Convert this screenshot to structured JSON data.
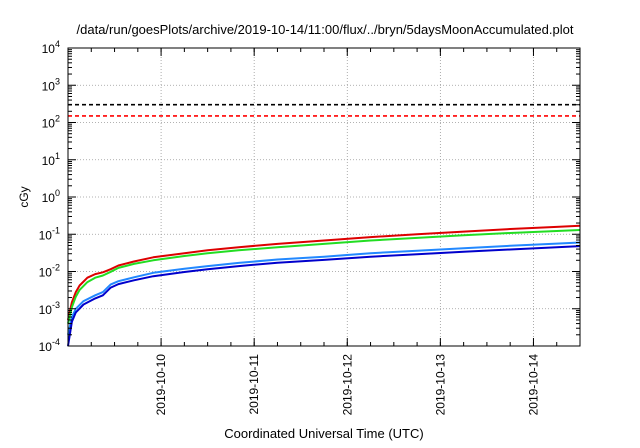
{
  "chart_data": {
    "type": "line",
    "title": "/data/run/goesPlots/archive/2019-10-14/11:00/flux/../bryn/5daysMoonAccumulated.plot",
    "xlabel": "Coordinated Universal Time (UTC)",
    "ylabel": "cGy",
    "x_is_date": true,
    "xlim": [
      "2019-10-09T00:00",
      "2019-10-14T12:00"
    ],
    "x_ticks": [
      "2019-10-10",
      "2019-10-11",
      "2019-10-12",
      "2019-10-13",
      "2019-10-14"
    ],
    "y_scale": "log",
    "ylim": [
      0.0001,
      10000
    ],
    "y_ticks": [
      {
        "base": "10",
        "exp": "-4"
      },
      {
        "base": "10",
        "exp": "-3"
      },
      {
        "base": "10",
        "exp": "-2"
      },
      {
        "base": "10",
        "exp": "-1"
      },
      {
        "base": "10",
        "exp": "0"
      },
      {
        "base": "10",
        "exp": "1"
      },
      {
        "base": "10",
        "exp": "2"
      },
      {
        "base": "10",
        "exp": "3"
      },
      {
        "base": "10",
        "exp": "4"
      }
    ],
    "grid": true,
    "legend": "none",
    "thresholds": [
      {
        "value": 300,
        "color": "#000000",
        "style": "dashed"
      },
      {
        "value": 150,
        "color": "#ff0000",
        "style": "dashed"
      }
    ],
    "series": [
      {
        "color": "#dd0000",
        "points": [
          [
            "2019-10-09T00:00",
            0.0005
          ],
          [
            "2019-10-09T01:00",
            0.0015
          ],
          [
            "2019-10-09T02:00",
            0.0028
          ],
          [
            "2019-10-09T03:00",
            0.0042
          ],
          [
            "2019-10-09T05:00",
            0.0068
          ],
          [
            "2019-10-09T07:00",
            0.0085
          ],
          [
            "2019-10-09T09:00",
            0.0095
          ],
          [
            "2019-10-09T11:00",
            0.0115
          ],
          [
            "2019-10-09T13:00",
            0.0145
          ],
          [
            "2019-10-09T17:00",
            0.0185
          ],
          [
            "2019-10-09T22:00",
            0.024
          ],
          [
            "2019-10-10T06:00",
            0.031
          ],
          [
            "2019-10-10T12:00",
            0.037
          ],
          [
            "2019-10-10T20:00",
            0.045
          ],
          [
            "2019-10-11T06:00",
            0.055
          ],
          [
            "2019-10-11T18:00",
            0.068
          ],
          [
            "2019-10-12T06:00",
            0.084
          ],
          [
            "2019-10-12T18:00",
            0.1
          ],
          [
            "2019-10-13T06:00",
            0.118
          ],
          [
            "2019-10-13T18:00",
            0.138
          ],
          [
            "2019-10-14T06:00",
            0.158
          ],
          [
            "2019-10-14T12:00",
            0.17
          ]
        ]
      },
      {
        "color": "#22dd22",
        "points": [
          [
            "2019-10-09T00:00",
            0.0004
          ],
          [
            "2019-10-09T01:00",
            0.0011
          ],
          [
            "2019-10-09T02:00",
            0.0021
          ],
          [
            "2019-10-09T03:00",
            0.0032
          ],
          [
            "2019-10-09T05:00",
            0.0052
          ],
          [
            "2019-10-09T07:00",
            0.0068
          ],
          [
            "2019-10-09T09:00",
            0.0078
          ],
          [
            "2019-10-09T11:00",
            0.0098
          ],
          [
            "2019-10-09T13:00",
            0.0125
          ],
          [
            "2019-10-09T17:00",
            0.016
          ],
          [
            "2019-10-09T22:00",
            0.02
          ],
          [
            "2019-10-10T06:00",
            0.026
          ],
          [
            "2019-10-10T12:00",
            0.031
          ],
          [
            "2019-10-10T20:00",
            0.037
          ],
          [
            "2019-10-11T06:00",
            0.045
          ],
          [
            "2019-10-11T18:00",
            0.055
          ],
          [
            "2019-10-12T06:00",
            0.068
          ],
          [
            "2019-10-12T18:00",
            0.08
          ],
          [
            "2019-10-13T06:00",
            0.094
          ],
          [
            "2019-10-13T18:00",
            0.108
          ],
          [
            "2019-10-14T06:00",
            0.122
          ],
          [
            "2019-10-14T12:00",
            0.13
          ]
        ]
      },
      {
        "color": "#2288ff",
        "points": [
          [
            "2019-10-09T00:00",
            0.0002
          ],
          [
            "2019-10-09T01:00",
            0.0006
          ],
          [
            "2019-10-09T02:00",
            0.001
          ],
          [
            "2019-10-09T04:00",
            0.0016
          ],
          [
            "2019-10-09T07:00",
            0.0023
          ],
          [
            "2019-10-09T09:00",
            0.0028
          ],
          [
            "2019-10-09T11:00",
            0.0045
          ],
          [
            "2019-10-09T13:00",
            0.0055
          ],
          [
            "2019-10-09T17:00",
            0.007
          ],
          [
            "2019-10-09T22:00",
            0.0092
          ],
          [
            "2019-10-10T06:00",
            0.0118
          ],
          [
            "2019-10-10T12:00",
            0.014
          ],
          [
            "2019-10-10T20:00",
            0.017
          ],
          [
            "2019-10-11T06:00",
            0.021
          ],
          [
            "2019-10-11T18:00",
            0.025
          ],
          [
            "2019-10-12T06:00",
            0.031
          ],
          [
            "2019-10-12T18:00",
            0.036
          ],
          [
            "2019-10-13T06:00",
            0.042
          ],
          [
            "2019-10-13T18:00",
            0.049
          ],
          [
            "2019-10-14T06:00",
            0.056
          ],
          [
            "2019-10-14T12:00",
            0.06
          ]
        ]
      },
      {
        "color": "#0000cc",
        "points": [
          [
            "2019-10-09T00:00",
            0.0001
          ],
          [
            "2019-10-09T01:00",
            0.00045
          ],
          [
            "2019-10-09T02:00",
            0.0008
          ],
          [
            "2019-10-09T04:00",
            0.0013
          ],
          [
            "2019-10-09T07:00",
            0.0019
          ],
          [
            "2019-10-09T09:00",
            0.0023
          ],
          [
            "2019-10-09T11:00",
            0.0037
          ],
          [
            "2019-10-09T13:00",
            0.0046
          ],
          [
            "2019-10-09T17:00",
            0.0058
          ],
          [
            "2019-10-09T22:00",
            0.0075
          ],
          [
            "2019-10-10T06:00",
            0.0097
          ],
          [
            "2019-10-10T12:00",
            0.0115
          ],
          [
            "2019-10-10T20:00",
            0.014
          ],
          [
            "2019-10-11T06:00",
            0.0172
          ],
          [
            "2019-10-11T18:00",
            0.0205
          ],
          [
            "2019-10-12T06:00",
            0.025
          ],
          [
            "2019-10-12T18:00",
            0.029
          ],
          [
            "2019-10-13T06:00",
            0.034
          ],
          [
            "2019-10-13T18:00",
            0.039
          ],
          [
            "2019-10-14T06:00",
            0.045
          ],
          [
            "2019-10-14T12:00",
            0.048
          ]
        ]
      }
    ]
  }
}
